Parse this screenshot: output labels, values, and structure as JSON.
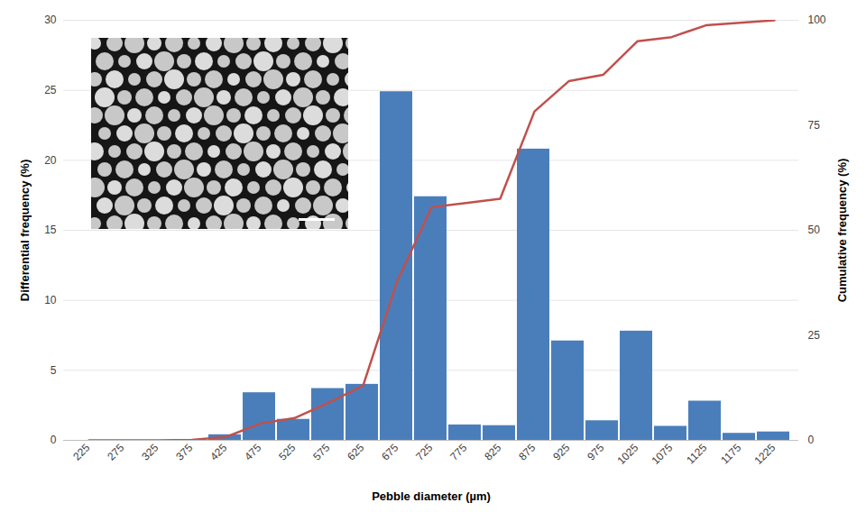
{
  "chart_data": {
    "type": "bar",
    "x_label": "Pebble diameter (µm)",
    "y_label": "Differential frequency (%)",
    "y2_label": "Cumulative frequency (%)",
    "categories": [
      "225",
      "275",
      "325",
      "375",
      "425",
      "475",
      "525",
      "575",
      "625",
      "675",
      "725",
      "775",
      "825",
      "875",
      "925",
      "975",
      "1025",
      "1075",
      "1125",
      "1175",
      "1225"
    ],
    "series": [
      {
        "type": "bar",
        "color": "#4a7ebb",
        "values": [
          0,
          0,
          0,
          0,
          0.4,
          3.4,
          1.5,
          3.7,
          4.0,
          24.9,
          17.4,
          1.1,
          1.05,
          20.8,
          7.1,
          1.4,
          7.8,
          1.0,
          2.8,
          0.5,
          0.6
        ]
      },
      {
        "type": "line",
        "axis": "y2",
        "color": "#c0504d",
        "values": [
          0,
          0,
          0,
          0.1,
          0.8,
          4,
          5.3,
          9,
          13,
          38,
          55.5,
          56.5,
          57.5,
          78.3,
          85.5,
          87,
          95,
          96,
          98.8,
          99.4,
          100
        ]
      }
    ],
    "ylim": [
      0,
      30
    ],
    "yticks": [
      0,
      5,
      10,
      15,
      20,
      25,
      30
    ],
    "y2lim": [
      0,
      100
    ],
    "y2ticks": [
      0,
      25,
      50,
      75,
      100
    ],
    "grid": true
  }
}
